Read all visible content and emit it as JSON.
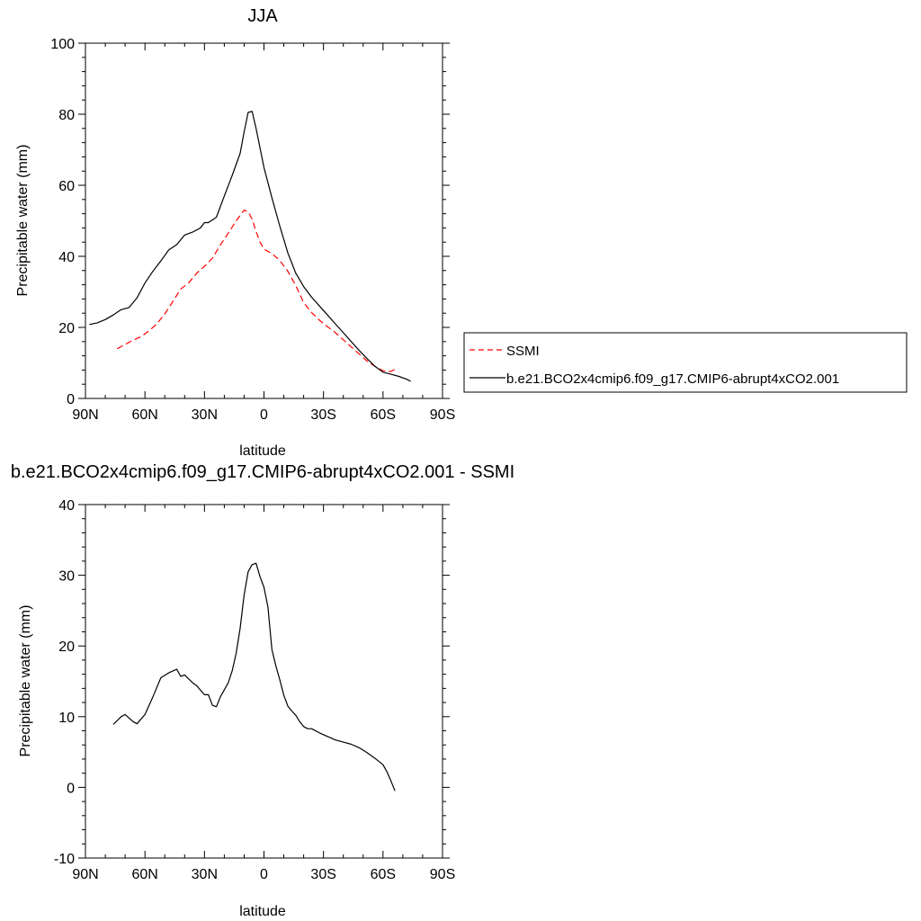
{
  "chart_data": [
    {
      "type": "line",
      "title": "JJA",
      "xlabel": "latitude",
      "ylabel": "Precipitable water (mm)",
      "xlim": [
        90,
        -90
      ],
      "ylim": [
        0,
        100
      ],
      "xticks": [
        90,
        60,
        30,
        0,
        -30,
        -60,
        -90
      ],
      "xtick_labels": [
        "90N",
        "60N",
        "30N",
        "0",
        "30S",
        "60S",
        "90S"
      ],
      "yticks": [
        0,
        20,
        40,
        60,
        80,
        100
      ],
      "ytick_labels": [
        "0",
        "20",
        "40",
        "60",
        "80",
        "100"
      ],
      "grid": false,
      "legend_position": "right",
      "series": [
        {
          "name": "SSMI",
          "color": "#ff0000",
          "style": "dashed",
          "x": [
            74,
            70,
            66,
            62,
            58,
            54,
            50,
            46,
            42,
            38,
            34,
            30,
            26,
            22,
            18,
            14,
            10,
            8,
            6,
            4,
            2,
            0,
            -4,
            -8,
            -12,
            -16,
            -20,
            -24,
            -28,
            -32,
            -36,
            -40,
            -44,
            -48,
            -52,
            -56,
            -60,
            -64,
            -66
          ],
          "y": [
            14,
            15.2,
            16.4,
            17.4,
            19,
            21,
            23.8,
            27.2,
            30.8,
            32.5,
            35.2,
            37.2,
            39.5,
            43.2,
            46.5,
            50,
            53,
            52.5,
            50.5,
            47,
            44,
            42,
            40.8,
            38.8,
            35.8,
            31.8,
            27,
            24.2,
            22,
            20.2,
            18.5,
            16.5,
            14.5,
            12.5,
            10.5,
            9,
            7.8,
            7.6,
            8.2
          ]
        },
        {
          "name": "b.e21.BCO2x4cmip6.f09_g17.CMIP6-abrupt4xCO2.001",
          "color": "#000000",
          "style": "solid",
          "x": [
            88,
            84,
            80,
            76,
            72,
            68,
            64,
            60,
            56,
            52,
            48,
            44,
            40,
            36,
            32,
            30,
            28,
            24,
            20,
            16,
            12,
            10,
            8,
            6,
            4,
            2,
            0,
            -4,
            -8,
            -12,
            -16,
            -20,
            -24,
            -28,
            -32,
            -36,
            -40,
            -44,
            -48,
            -52,
            -56,
            -60,
            -64,
            -68,
            -72,
            -74
          ],
          "y": [
            20.8,
            21.3,
            22.2,
            23.5,
            25,
            25.6,
            28.3,
            32.5,
            35.8,
            38.7,
            41.8,
            43.3,
            46,
            46.8,
            48,
            49.5,
            49.5,
            51,
            57,
            62.8,
            69,
            75,
            80.5,
            80.8,
            76,
            70.5,
            65,
            56.5,
            48.5,
            41,
            35.3,
            31.5,
            28.5,
            26,
            23.5,
            21,
            18.5,
            16,
            13.5,
            11.2,
            9,
            7.4,
            6.8,
            6.2,
            5.4,
            4.8
          ]
        }
      ]
    },
    {
      "type": "line",
      "title": "b.e21.BCO2x4cmip6.f09_g17.CMIP6-abrupt4xCO2.001 - SSMI",
      "xlabel": "latitude",
      "ylabel": "Precipitable water (mm)",
      "xlim": [
        90,
        -90
      ],
      "ylim": [
        -10,
        40
      ],
      "xticks": [
        90,
        60,
        30,
        0,
        -30,
        -60,
        -90
      ],
      "xtick_labels": [
        "90N",
        "60N",
        "30N",
        "0",
        "30S",
        "60S",
        "90S"
      ],
      "yticks": [
        -10,
        0,
        10,
        20,
        30,
        40
      ],
      "ytick_labels": [
        "-10",
        "0",
        "10",
        "20",
        "30",
        "40"
      ],
      "grid": false,
      "series": [
        {
          "color": "#000000",
          "style": "solid",
          "x": [
            76,
            72,
            70,
            66,
            64,
            60,
            56,
            52,
            48,
            44,
            42,
            40,
            36,
            34,
            30,
            28,
            26,
            24,
            22,
            18,
            16,
            14,
            12,
            10,
            8,
            6,
            4,
            2,
            0,
            -2,
            -4,
            -6,
            -8,
            -10,
            -12,
            -14,
            -16,
            -18,
            -20,
            -22,
            -24,
            -28,
            -32,
            -36,
            -40,
            -44,
            -48,
            -52,
            -56,
            -60,
            -62,
            -64,
            -66
          ],
          "y": [
            8.9,
            10,
            10.3,
            9.3,
            9,
            10.3,
            12.8,
            15.5,
            16.2,
            16.7,
            15.7,
            15.9,
            14.8,
            14.4,
            13.1,
            13.1,
            11.6,
            11.4,
            12.8,
            14.8,
            16.5,
            19,
            22.5,
            27.2,
            30.5,
            31.5,
            31.7,
            29.8,
            28.3,
            25.5,
            19.5,
            17.2,
            15.2,
            13,
            11.5,
            10.8,
            10.2,
            9.3,
            8.6,
            8.3,
            8.3,
            7.7,
            7.2,
            6.7,
            6.4,
            6.1,
            5.6,
            4.9,
            4.1,
            3.2,
            2.2,
            0.9,
            -0.5
          ]
        }
      ]
    }
  ]
}
